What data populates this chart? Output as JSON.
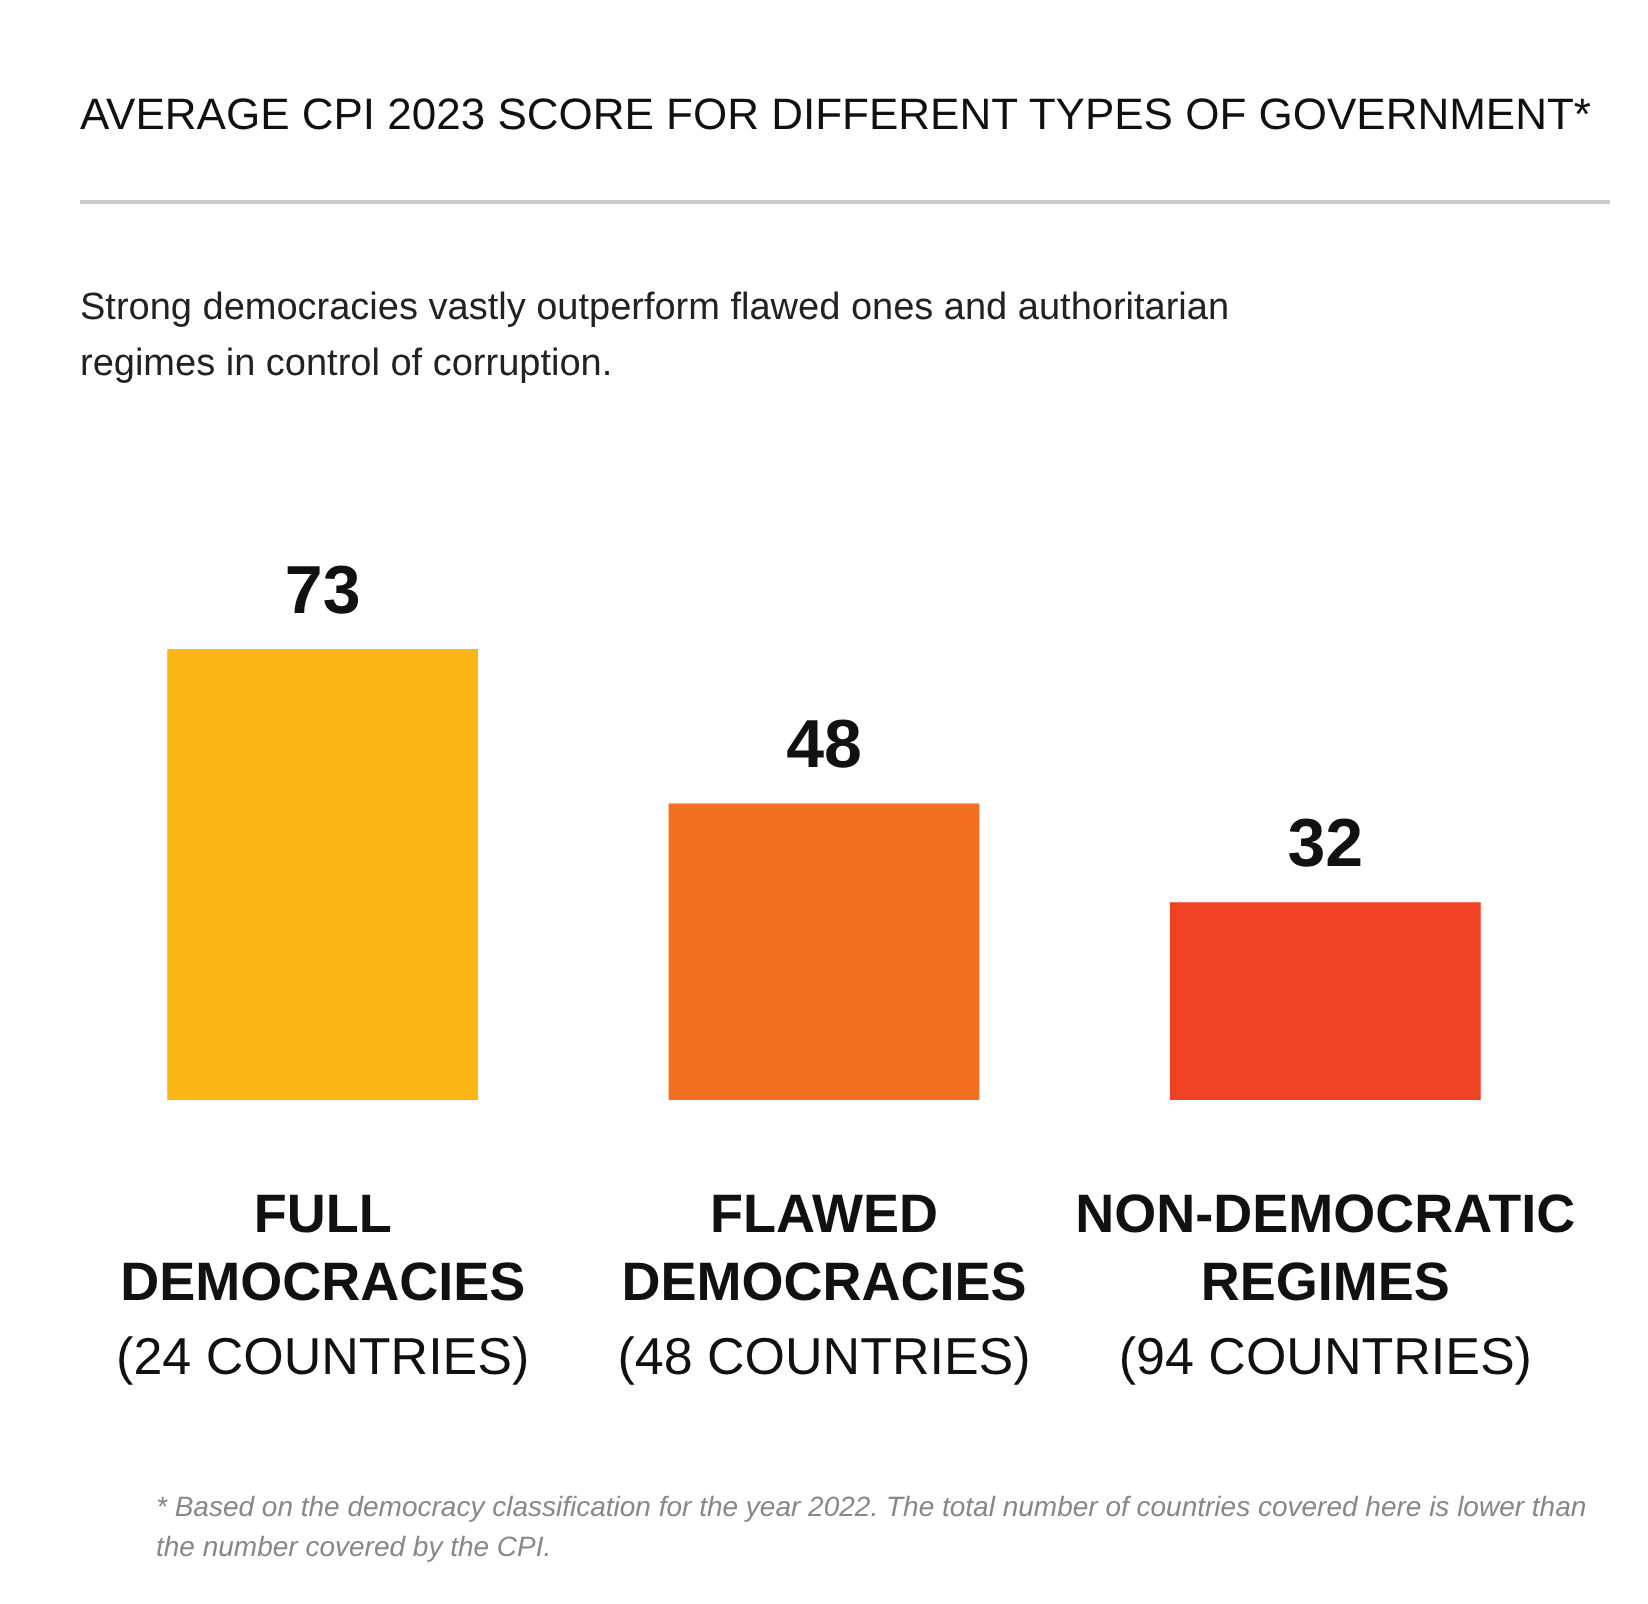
{
  "chart_data": {
    "type": "bar",
    "title": "AVERAGE CPI 2023 SCORE FOR DIFFERENT TYPES OF GOVERNMENT*",
    "subtitle": "Strong democracies vastly outperform flawed ones and authoritarian regimes in control of corruption.",
    "categories": [
      "FULL\nDEMOCRACIES\n(24 COUNTRIES)",
      "FLAWED\nDEMOCRACIES\n(48 COUNTRIES)",
      "NON-DEMOCRATIC\nREGIMES\n(94 COUNTRIES)"
    ],
    "values": [
      73,
      48,
      32
    ],
    "colors": [
      "#fbb515",
      "#f36f21",
      "#ef4123"
    ],
    "data_labels": true,
    "annotations": [
      "* Based on the democracy classification for the year 2022. The total number of countries covered here is lower than the number covered by the CPI."
    ]
  }
}
